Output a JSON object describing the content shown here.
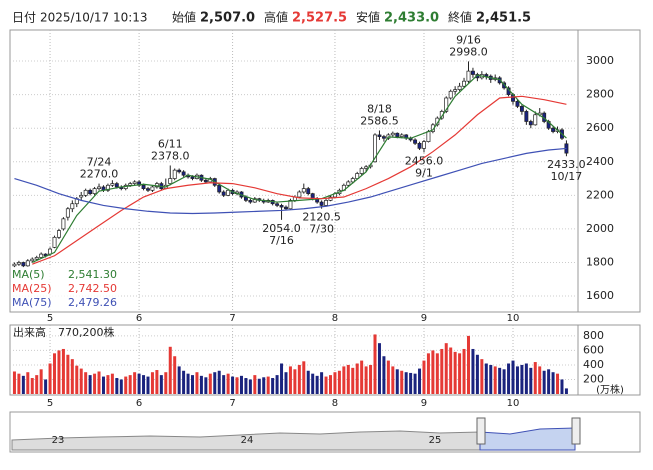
{
  "header": {
    "date_label": "日付",
    "datetime": "2025/10/17 10:13",
    "open_label": "始値",
    "open": "2,507.0",
    "high_label": "高値",
    "high": "2,527.5",
    "low_label": "安値",
    "low": "2,433.0",
    "close_label": "終値",
    "close": "2,451.5"
  },
  "chart_data": {
    "type": "candlestick",
    "up_color": "#ffffff",
    "down_color": "#1a237e",
    "grid": true,
    "xlim": [
      -1,
      126.6
    ],
    "xticks": [
      {
        "value": 8,
        "label": "5"
      },
      {
        "value": 28,
        "label": "6"
      },
      {
        "value": 49,
        "label": "7"
      },
      {
        "value": 72,
        "label": "8"
      },
      {
        "value": 92,
        "label": "9"
      },
      {
        "value": 112,
        "label": "10"
      }
    ],
    "ylim": [
      1505,
      3185
    ],
    "yticks": [
      1600,
      1800,
      2000,
      2200,
      2400,
      2600,
      2800,
      3000
    ],
    "ohlc": [
      [
        1780,
        1800,
        1770,
        1790
      ],
      [
        1790,
        1810,
        1780,
        1800
      ],
      [
        1800,
        1805,
        1770,
        1780
      ],
      [
        1780,
        1820,
        1775,
        1810
      ],
      [
        1810,
        1830,
        1800,
        1820
      ],
      [
        1820,
        1840,
        1810,
        1830
      ],
      [
        1830,
        1860,
        1825,
        1850
      ],
      [
        1850,
        1855,
        1830,
        1840
      ],
      [
        1850,
        1890,
        1840,
        1880
      ],
      [
        1890,
        1960,
        1885,
        1950
      ],
      [
        1950,
        2000,
        1940,
        1990
      ],
      [
        2000,
        2070,
        1990,
        2060
      ],
      [
        2070,
        2130,
        2050,
        2120
      ],
      [
        2120,
        2170,
        2100,
        2150
      ],
      [
        2150,
        2190,
        2130,
        2180
      ],
      [
        2190,
        2220,
        2170,
        2200
      ],
      [
        2200,
        2240,
        2190,
        2230
      ],
      [
        2230,
        2240,
        2200,
        2210
      ],
      [
        2210,
        2250,
        2200,
        2240
      ],
      [
        2240,
        2270,
        2230,
        2250
      ],
      [
        2250,
        2260,
        2220,
        2230
      ],
      [
        2230,
        2270,
        2220,
        2260
      ],
      [
        2260,
        2290,
        2250,
        2270
      ],
      [
        2270,
        2280,
        2240,
        2250
      ],
      [
        2250,
        2260,
        2230,
        2240
      ],
      [
        2240,
        2270,
        2230,
        2260
      ],
      [
        2260,
        2280,
        2250,
        2270
      ],
      [
        2270,
        2290,
        2260,
        2280
      ],
      [
        2280,
        2290,
        2250,
        2260
      ],
      [
        2260,
        2270,
        2230,
        2240
      ],
      [
        2240,
        2250,
        2220,
        2230
      ],
      [
        2230,
        2260,
        2220,
        2250
      ],
      [
        2250,
        2280,
        2240,
        2270
      ],
      [
        2270,
        2280,
        2230,
        2240
      ],
      [
        2240,
        2300,
        2235,
        2260
      ],
      [
        2270,
        2378,
        2260,
        2300
      ],
      [
        2300,
        2360,
        2290,
        2350
      ],
      [
        2350,
        2360,
        2330,
        2340
      ],
      [
        2340,
        2350,
        2310,
        2320
      ],
      [
        2320,
        2330,
        2300,
        2310
      ],
      [
        2310,
        2320,
        2290,
        2300
      ],
      [
        2300,
        2330,
        2295,
        2320
      ],
      [
        2320,
        2325,
        2280,
        2290
      ],
      [
        2290,
        2300,
        2270,
        2280
      ],
      [
        2280,
        2310,
        2275,
        2300
      ],
      [
        2300,
        2305,
        2250,
        2260
      ],
      [
        2260,
        2270,
        2210,
        2220
      ],
      [
        2220,
        2230,
        2190,
        2200
      ],
      [
        2200,
        2240,
        2195,
        2230
      ],
      [
        2230,
        2240,
        2200,
        2210
      ],
      [
        2210,
        2230,
        2200,
        2220
      ],
      [
        2220,
        2225,
        2180,
        2190
      ],
      [
        2190,
        2200,
        2160,
        2170
      ],
      [
        2170,
        2180,
        2150,
        2160
      ],
      [
        2160,
        2190,
        2155,
        2180
      ],
      [
        2180,
        2185,
        2160,
        2170
      ],
      [
        2170,
        2180,
        2150,
        2160
      ],
      [
        2160,
        2180,
        2155,
        2170
      ],
      [
        2170,
        2175,
        2140,
        2150
      ],
      [
        2150,
        2160,
        2130,
        2140
      ],
      [
        2140,
        2150,
        2054,
        2130
      ],
      [
        2130,
        2140,
        2110,
        2120
      ],
      [
        2120,
        2180,
        2115,
        2170
      ],
      [
        2170,
        2200,
        2160,
        2190
      ],
      [
        2190,
        2230,
        2185,
        2220
      ],
      [
        2220,
        2270,
        2210,
        2240
      ],
      [
        2240,
        2250,
        2200,
        2210
      ],
      [
        2210,
        2215,
        2170,
        2180
      ],
      [
        2180,
        2190,
        2150,
        2160
      ],
      [
        2160,
        2170,
        2120.5,
        2140
      ],
      [
        2140,
        2180,
        2135,
        2170
      ],
      [
        2170,
        2200,
        2165,
        2190
      ],
      [
        2190,
        2220,
        2185,
        2210
      ],
      [
        2210,
        2240,
        2200,
        2230
      ],
      [
        2230,
        2270,
        2225,
        2260
      ],
      [
        2260,
        2290,
        2250,
        2280
      ],
      [
        2280,
        2310,
        2270,
        2300
      ],
      [
        2300,
        2340,
        2295,
        2330
      ],
      [
        2330,
        2370,
        2320,
        2360
      ],
      [
        2360,
        2380,
        2340,
        2370
      ],
      [
        2370,
        2390,
        2360,
        2380
      ],
      [
        2400,
        2570,
        2395,
        2560
      ],
      [
        2560,
        2586.5,
        2530,
        2550
      ],
      [
        2550,
        2560,
        2520,
        2540
      ],
      [
        2540,
        2570,
        2530,
        2560
      ],
      [
        2560,
        2580,
        2550,
        2570
      ],
      [
        2570,
        2575,
        2540,
        2550
      ],
      [
        2550,
        2570,
        2540,
        2560
      ],
      [
        2560,
        2565,
        2530,
        2540
      ],
      [
        2540,
        2550,
        2520,
        2530
      ],
      [
        2530,
        2540,
        2500,
        2510
      ],
      [
        2510,
        2520,
        2470,
        2480
      ],
      [
        2480,
        2530,
        2456,
        2520
      ],
      [
        2520,
        2590,
        2515,
        2580
      ],
      [
        2580,
        2630,
        2570,
        2620
      ],
      [
        2620,
        2670,
        2610,
        2660
      ],
      [
        2660,
        2710,
        2650,
        2700
      ],
      [
        2700,
        2790,
        2690,
        2780
      ],
      [
        2780,
        2830,
        2770,
        2820
      ],
      [
        2820,
        2850,
        2800,
        2830
      ],
      [
        2830,
        2870,
        2820,
        2850
      ],
      [
        2850,
        2900,
        2840,
        2880
      ],
      [
        2880,
        2998,
        2870,
        2940
      ],
      [
        2940,
        2960,
        2900,
        2920
      ],
      [
        2920,
        2930,
        2880,
        2900
      ],
      [
        2900,
        2940,
        2890,
        2920
      ],
      [
        2920,
        2930,
        2890,
        2910
      ],
      [
        2910,
        2920,
        2870,
        2890
      ],
      [
        2890,
        2920,
        2880,
        2900
      ],
      [
        2900,
        2910,
        2860,
        2870
      ],
      [
        2870,
        2880,
        2830,
        2840
      ],
      [
        2840,
        2850,
        2790,
        2800
      ],
      [
        2800,
        2810,
        2740,
        2760
      ],
      [
        2760,
        2770,
        2720,
        2730
      ],
      [
        2730,
        2740,
        2680,
        2700
      ],
      [
        2700,
        2710,
        2620,
        2640
      ],
      [
        2640,
        2650,
        2600,
        2620
      ],
      [
        2620,
        2700,
        2615,
        2680
      ],
      [
        2680,
        2720,
        2670,
        2690
      ],
      [
        2690,
        2700,
        2630,
        2640
      ],
      [
        2640,
        2650,
        2590,
        2600
      ],
      [
        2600,
        2610,
        2570,
        2580
      ],
      [
        2580,
        2610,
        2570,
        2590
      ],
      [
        2590,
        2600,
        2530,
        2540
      ],
      [
        2507,
        2527.5,
        2433,
        2451.5
      ]
    ],
    "series": [
      {
        "name": "MA(5)",
        "color": "#2e7d32",
        "value_label": "2,541.30",
        "x": [
          4,
          9,
          14,
          19,
          24,
          29,
          34,
          39,
          44,
          49,
          54,
          59,
          64,
          69,
          74,
          79,
          84,
          89,
          94,
          99,
          104,
          109,
          114,
          119,
          124
        ],
        "values": [
          1800,
          1860,
          2080,
          2225,
          2250,
          2266,
          2250,
          2320,
          2296,
          2220,
          2175,
          2160,
          2170,
          2180,
          2230,
          2340,
          2548,
          2540,
          2590,
          2790,
          2916,
          2890,
          2742,
          2660,
          2541.3
        ]
      },
      {
        "name": "MA(25)",
        "color": "#e53935",
        "value_label": "2,742.50",
        "x": [
          4,
          9,
          14,
          19,
          24,
          29,
          34,
          39,
          44,
          49,
          54,
          59,
          64,
          69,
          74,
          79,
          84,
          89,
          94,
          99,
          104,
          109,
          114,
          119,
          124
        ],
        "values": [
          1790,
          1840,
          1930,
          2020,
          2110,
          2190,
          2240,
          2260,
          2275,
          2270,
          2245,
          2210,
          2185,
          2180,
          2190,
          2240,
          2300,
          2370,
          2460,
          2560,
          2680,
          2780,
          2790,
          2770,
          2742.5
        ]
      },
      {
        "name": "MA(75)",
        "color": "#3f51b5",
        "value_label": "2,479.26",
        "x": [
          0,
          5,
          10,
          15,
          20,
          25,
          30,
          35,
          40,
          45,
          50,
          55,
          60,
          65,
          70,
          75,
          80,
          85,
          90,
          95,
          100,
          105,
          110,
          115,
          120,
          124
        ],
        "values": [
          2300,
          2260,
          2210,
          2170,
          2140,
          2120,
          2105,
          2095,
          2092,
          2095,
          2100,
          2105,
          2110,
          2120,
          2135,
          2160,
          2190,
          2230,
          2270,
          2310,
          2350,
          2390,
          2420,
          2450,
          2470,
          2479.26
        ]
      }
    ],
    "annotations": [
      {
        "date": "6/11",
        "label": "2378.0",
        "value": 2378,
        "side": "high"
      },
      {
        "date": "7/16",
        "label": "2054.0",
        "value": 2054,
        "side": "low"
      },
      {
        "date": "7/24",
        "label": "2270.0",
        "value": 2270,
        "side": "high"
      },
      {
        "date": "7/30",
        "label": "2120.5",
        "value": 2120.5,
        "side": "low"
      },
      {
        "date": "8/18",
        "label": "2586.5",
        "value": 2586.5,
        "side": "high"
      },
      {
        "date": "9/1",
        "label": "2456.0",
        "value": 2456,
        "side": "low"
      },
      {
        "date": "9/16",
        "label": "2998.0",
        "value": 2998,
        "side": "high"
      },
      {
        "date": "10/17",
        "label": "2433.0",
        "value": 2433,
        "side": "low"
      }
    ],
    "volume": {
      "title": "出来高",
      "last_label": "770,200株",
      "unit": "(万株)",
      "ylim": [
        0,
        950
      ],
      "yticks": [
        200,
        400,
        600,
        800
      ],
      "values": [
        310,
        280,
        250,
        300,
        220,
        260,
        340,
        200,
        420,
        560,
        600,
        620,
        540,
        480,
        390,
        350,
        300,
        260,
        280,
        310,
        240,
        260,
        280,
        220,
        200,
        240,
        260,
        300,
        280,
        260,
        240,
        300,
        330,
        260,
        300,
        650,
        520,
        380,
        320,
        280,
        260,
        300,
        250,
        230,
        280,
        300,
        320,
        260,
        280,
        240,
        230,
        250,
        220,
        200,
        260,
        210,
        230,
        240,
        220,
        260,
        420,
        300,
        380,
        340,
        400,
        450,
        320,
        280,
        250,
        300,
        240,
        260,
        300,
        320,
        380,
        400,
        360,
        420,
        460,
        380,
        400,
        820,
        700,
        520,
        460,
        380,
        340,
        320,
        300,
        290,
        280,
        350,
        460,
        560,
        600,
        560,
        620,
        700,
        640,
        580,
        560,
        620,
        800,
        620,
        540,
        480,
        420,
        400,
        380,
        360,
        340,
        420,
        460,
        380,
        400,
        420,
        360,
        440,
        380,
        320,
        340,
        300,
        280,
        200,
        77.02
      ]
    },
    "navigator_labels": [
      "23",
      "24",
      "25"
    ]
  }
}
